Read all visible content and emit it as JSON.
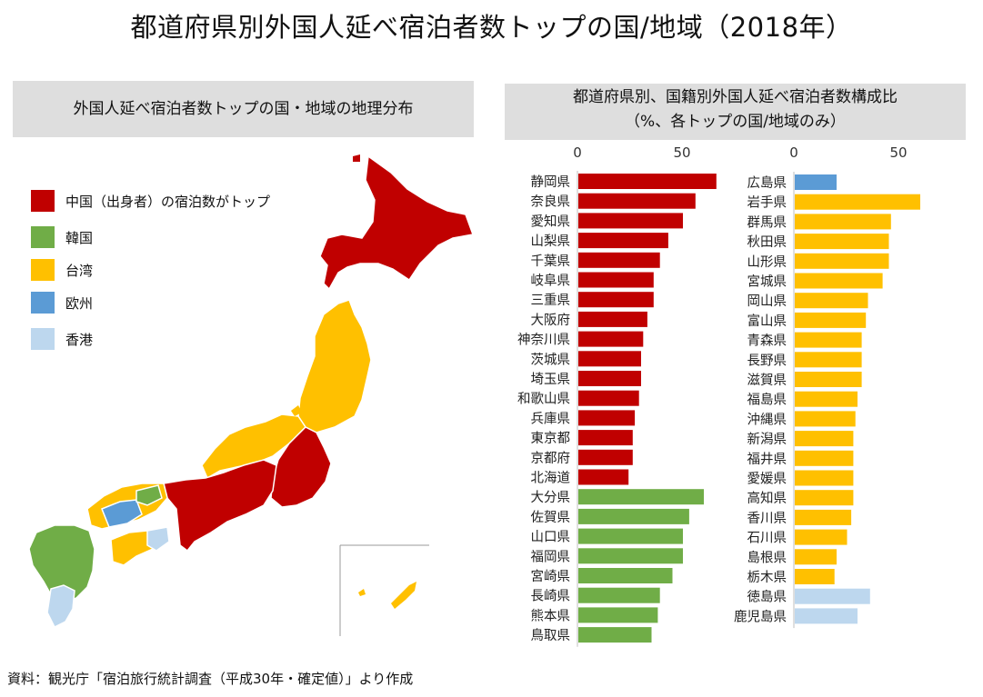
{
  "title": "都道府県別外国人延べ宿泊者数トップの国/地域（2018年）",
  "left_panel": {
    "heading": "外国人延べ宿泊者数トップの国・地域の地理分布"
  },
  "right_panel": {
    "heading_line1": "都道府県別、国籍別外国人延べ宿泊者数構成比",
    "heading_line2": "（%、各トップの国/地域のみ）"
  },
  "legend": [
    {
      "label": "中国（出身者）の宿泊数がトップ",
      "color": "#c00000"
    },
    {
      "label": "韓国",
      "color": "#70ad47"
    },
    {
      "label": "台湾",
      "color": "#ffc000"
    },
    {
      "label": "欧州",
      "color": "#5b9bd5"
    },
    {
      "label": "香港",
      "color": "#bdd7ee"
    }
  ],
  "colors": {
    "中国": "#c00000",
    "韓国": "#70ad47",
    "台湾": "#ffc000",
    "欧州": "#5b9bd5",
    "香港": "#bdd7ee"
  },
  "chart_data": [
    {
      "type": "bar",
      "orientation": "horizontal",
      "xlim": [
        0,
        70
      ],
      "ticks": [
        0,
        50
      ],
      "bars": [
        {
          "label": "静岡県",
          "value": 66,
          "group": "中国"
        },
        {
          "label": "奈良県",
          "value": 56,
          "group": "中国"
        },
        {
          "label": "愛知県",
          "value": 50,
          "group": "中国"
        },
        {
          "label": "山梨県",
          "value": 43,
          "group": "中国"
        },
        {
          "label": "千葉県",
          "value": 39,
          "group": "中国"
        },
        {
          "label": "岐阜県",
          "value": 36,
          "group": "中国"
        },
        {
          "label": "三重県",
          "value": 36,
          "group": "中国"
        },
        {
          "label": "大阪府",
          "value": 33,
          "group": "中国"
        },
        {
          "label": "神奈川県",
          "value": 31,
          "group": "中国"
        },
        {
          "label": "茨城県",
          "value": 30,
          "group": "中国"
        },
        {
          "label": "埼玉県",
          "value": 30,
          "group": "中国"
        },
        {
          "label": "和歌山県",
          "value": 29,
          "group": "中国"
        },
        {
          "label": "兵庫県",
          "value": 27,
          "group": "中国"
        },
        {
          "label": "東京都",
          "value": 26,
          "group": "中国"
        },
        {
          "label": "京都府",
          "value": 26,
          "group": "中国"
        },
        {
          "label": "北海道",
          "value": 24,
          "group": "中国"
        },
        {
          "label": "大分県",
          "value": 60,
          "group": "韓国"
        },
        {
          "label": "佐賀県",
          "value": 53,
          "group": "韓国"
        },
        {
          "label": "山口県",
          "value": 50,
          "group": "韓国"
        },
        {
          "label": "福岡県",
          "value": 50,
          "group": "韓国"
        },
        {
          "label": "宮崎県",
          "value": 45,
          "group": "韓国"
        },
        {
          "label": "長崎県",
          "value": 39,
          "group": "韓国"
        },
        {
          "label": "熊本県",
          "value": 38,
          "group": "韓国"
        },
        {
          "label": "鳥取県",
          "value": 35,
          "group": "韓国"
        }
      ]
    },
    {
      "type": "bar",
      "orientation": "horizontal",
      "xlim": [
        0,
        70
      ],
      "ticks": [
        0,
        50
      ],
      "bars": [
        {
          "label": "広島県",
          "value": 20,
          "group": "欧州"
        },
        {
          "label": "岩手県",
          "value": 60,
          "group": "台湾"
        },
        {
          "label": "群馬県",
          "value": 46,
          "group": "台湾"
        },
        {
          "label": "秋田県",
          "value": 45,
          "group": "台湾"
        },
        {
          "label": "山形県",
          "value": 45,
          "group": "台湾"
        },
        {
          "label": "宮城県",
          "value": 42,
          "group": "台湾"
        },
        {
          "label": "岡山県",
          "value": 35,
          "group": "台湾"
        },
        {
          "label": "富山県",
          "value": 34,
          "group": "台湾"
        },
        {
          "label": "青森県",
          "value": 32,
          "group": "台湾"
        },
        {
          "label": "長野県",
          "value": 32,
          "group": "台湾"
        },
        {
          "label": "滋賀県",
          "value": 32,
          "group": "台湾"
        },
        {
          "label": "福島県",
          "value": 30,
          "group": "台湾"
        },
        {
          "label": "沖縄県",
          "value": 29,
          "group": "台湾"
        },
        {
          "label": "新潟県",
          "value": 28,
          "group": "台湾"
        },
        {
          "label": "福井県",
          "value": 28,
          "group": "台湾"
        },
        {
          "label": "愛媛県",
          "value": 28,
          "group": "台湾"
        },
        {
          "label": "高知県",
          "value": 28,
          "group": "台湾"
        },
        {
          "label": "香川県",
          "value": 27,
          "group": "台湾"
        },
        {
          "label": "石川県",
          "value": 25,
          "group": "台湾"
        },
        {
          "label": "島根県",
          "value": 20,
          "group": "台湾"
        },
        {
          "label": "栃木県",
          "value": 19,
          "group": "台湾"
        },
        {
          "label": "徳島県",
          "value": 36,
          "group": "香港"
        },
        {
          "label": "鹿児島県",
          "value": 30,
          "group": "香港"
        }
      ]
    }
  ],
  "source": "資料：観光庁「宿泊旅行統計調査（平成30年・確定値）」より作成"
}
